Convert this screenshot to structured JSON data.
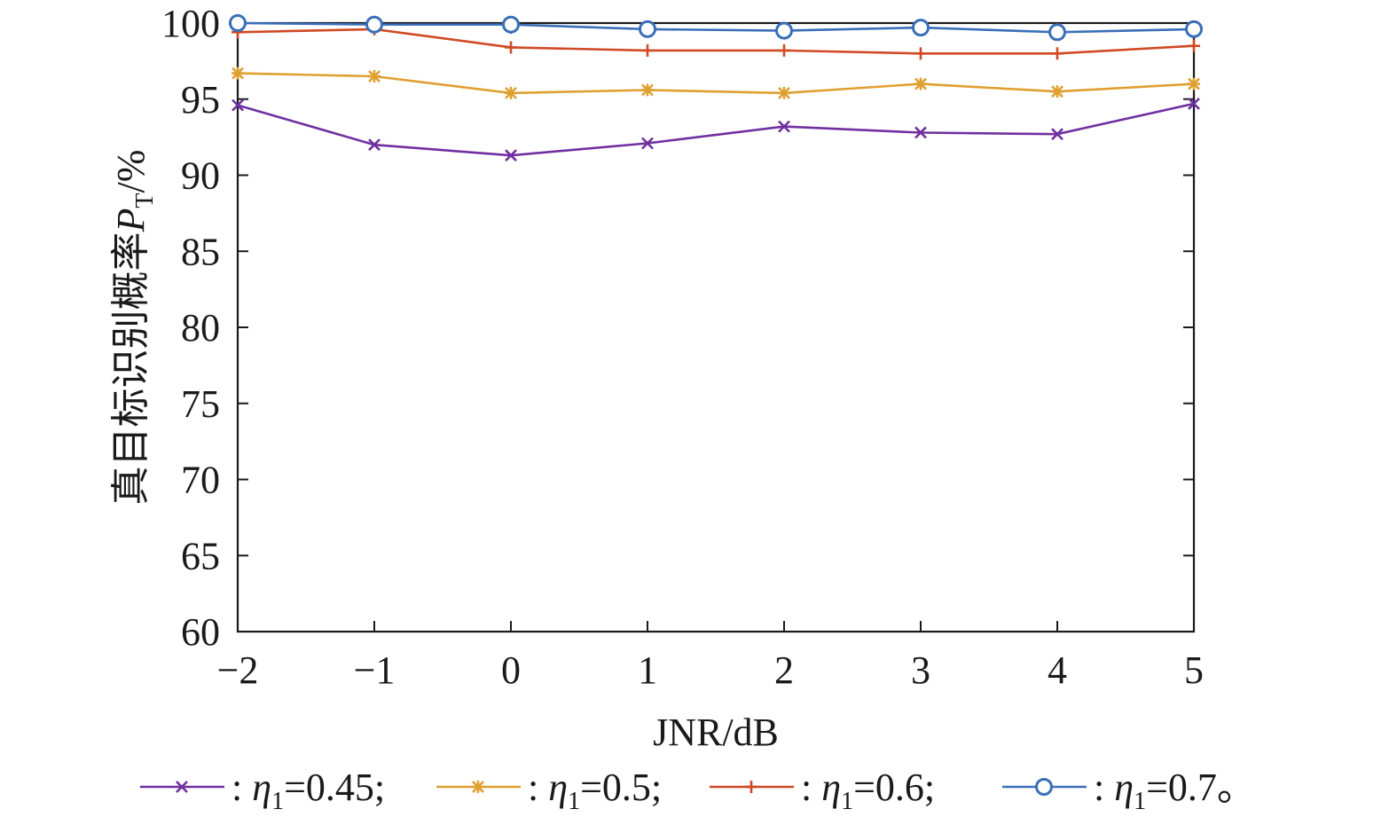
{
  "chart_data": {
    "type": "line",
    "xlabel": "JNR/dB",
    "ylabel": {
      "text": "真目标识别概率",
      "symbol": "P",
      "subscript": "T",
      "unit": "/%"
    },
    "x": [
      -2,
      -1,
      0,
      1,
      2,
      3,
      4,
      5
    ],
    "x_tick_labels": [
      "−2",
      "−1",
      "0",
      "1",
      "2",
      "3",
      "4",
      "5"
    ],
    "xlim": [
      -2,
      5
    ],
    "ylim": [
      60,
      100
    ],
    "y_ticks": [
      60,
      65,
      70,
      75,
      80,
      85,
      90,
      95,
      100
    ],
    "y_tick_labels": [
      "60",
      "65",
      "70",
      "75",
      "80",
      "85",
      "90",
      "95",
      "100"
    ],
    "grid": false,
    "legend_position": "bottom",
    "series": [
      {
        "symbol": "η",
        "subscript": "1",
        "value_text": "=0.45;",
        "marker": "x",
        "color": "#7030a0",
        "values": [
          94.6,
          92.0,
          91.3,
          92.1,
          93.2,
          92.8,
          92.7,
          94.7
        ]
      },
      {
        "symbol": "η",
        "subscript": "1",
        "value_text": "=0.5;",
        "marker": "star",
        "color": "#e0a030",
        "values": [
          96.7,
          96.5,
          95.4,
          95.6,
          95.4,
          96.0,
          95.5,
          96.0
        ]
      },
      {
        "symbol": "η",
        "subscript": "1",
        "value_text": "=0.6;",
        "marker": "plus",
        "color": "#d04a25",
        "values": [
          99.4,
          99.6,
          98.4,
          98.2,
          98.2,
          98.0,
          98.0,
          98.5
        ]
      },
      {
        "symbol": "η",
        "subscript": "1",
        "value_text": "=0.7。",
        "marker": "circle",
        "color": "#3a6fb8",
        "values": [
          100.0,
          99.9,
          99.9,
          99.6,
          99.5,
          99.7,
          99.4,
          99.6
        ]
      }
    ]
  }
}
